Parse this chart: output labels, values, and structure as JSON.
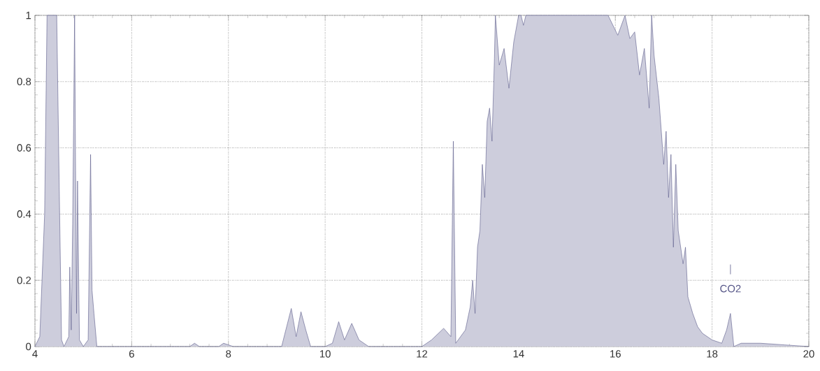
{
  "chart_data": {
    "type": "area",
    "x": [
      4.0,
      4.1,
      4.2,
      4.25,
      4.45,
      4.5,
      4.55,
      4.6,
      4.7,
      4.72,
      4.75,
      4.78,
      4.82,
      4.84,
      4.86,
      4.88,
      4.92,
      5.0,
      5.1,
      5.15,
      5.18,
      5.22,
      5.28,
      6.0,
      7.2,
      7.3,
      7.4,
      7.8,
      7.9,
      8.1,
      9.1,
      9.3,
      9.4,
      9.5,
      9.6,
      9.7,
      10.0,
      10.15,
      10.28,
      10.4,
      10.55,
      10.7,
      10.9,
      12.0,
      12.2,
      12.45,
      12.6,
      12.65,
      12.7,
      12.8,
      12.9,
      13.0,
      13.05,
      13.1,
      13.15,
      13.2,
      13.25,
      13.3,
      13.35,
      13.4,
      13.45,
      13.5,
      13.52,
      13.6,
      13.7,
      13.8,
      13.9,
      14.0,
      14.05,
      14.1,
      14.15,
      15.85,
      16.05,
      16.2,
      16.3,
      16.4,
      16.5,
      16.6,
      16.7,
      16.75,
      16.8,
      16.9,
      17.0,
      17.05,
      17.1,
      17.15,
      17.2,
      17.25,
      17.3,
      17.4,
      17.45,
      17.5,
      17.6,
      17.7,
      17.8,
      18.0,
      18.2,
      18.3,
      18.38,
      18.45,
      18.6,
      19.0,
      19.5,
      20.0
    ],
    "values": [
      0,
      0.03,
      0.4,
      1,
      1,
      0.5,
      0.02,
      0,
      0.03,
      0.24,
      0.05,
      0.37,
      1,
      0.53,
      0.1,
      0.5,
      0.02,
      0,
      0.02,
      0.58,
      0.17,
      0.1,
      0,
      0,
      0,
      0.01,
      0,
      0,
      0.01,
      0,
      0,
      0.115,
      0.03,
      0.105,
      0.05,
      0,
      0,
      0.01,
      0.075,
      0.02,
      0.07,
      0.02,
      0,
      0,
      0.02,
      0.055,
      0.03,
      0.62,
      0.01,
      0.03,
      0.05,
      0.12,
      0.2,
      0.1,
      0.3,
      0.35,
      0.55,
      0.45,
      0.68,
      0.72,
      0.62,
      0.87,
      1,
      0.85,
      0.9,
      0.78,
      0.92,
      1,
      1,
      0.97,
      1,
      1,
      0.94,
      1,
      0.93,
      0.95,
      0.82,
      0.9,
      0.72,
      1,
      0.88,
      0.75,
      0.55,
      0.65,
      0.45,
      0.58,
      0.3,
      0.55,
      0.35,
      0.25,
      0.3,
      0.15,
      0.1,
      0.06,
      0.04,
      0.02,
      0.01,
      0.05,
      0.1,
      0,
      0.01,
      0.01,
      0.005,
      0
    ],
    "color": "#5a5a8a",
    "xlim": [
      4,
      20
    ],
    "ylim": [
      0,
      1
    ],
    "xticks": [
      4,
      6,
      8,
      10,
      12,
      14,
      16,
      18,
      20
    ],
    "yticks": [
      0,
      0.2,
      0.4,
      0.6,
      0.8,
      1
    ],
    "grid": true,
    "annotations": [
      {
        "text": "CO2",
        "x": 18.38,
        "y": 0.1
      }
    ]
  }
}
